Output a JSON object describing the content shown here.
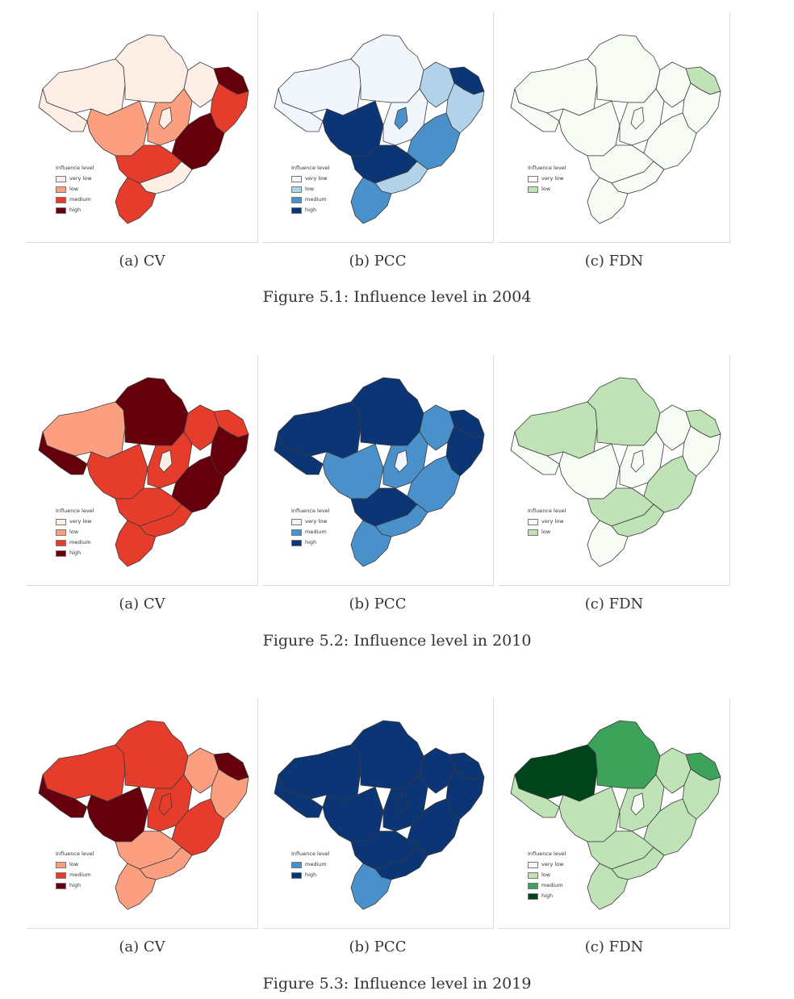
{
  "colors": {
    "red": {
      "very_low": "#fdeee6",
      "low": "#fb9f80",
      "medium": "#e63c2b",
      "high": "#66000d"
    },
    "blue": {
      "very_low": "#f1f6fd",
      "low": "#b2d2ea",
      "medium": "#4a91cb",
      "high": "#0b3574"
    },
    "green": {
      "very_low": "#f6fbf4",
      "low": "#bfe3b6",
      "medium": "#3da35a",
      "high": "#00441b"
    }
  },
  "figures": [
    {
      "caption": "Figure 5.1: Influence level in 2004",
      "panels": [
        {
          "caption": "(a) CV",
          "palette": "red",
          "legend": {
            "title": "Influence level",
            "items": [
              [
                "very low",
                "very_low"
              ],
              [
                "low",
                "low"
              ],
              [
                "medium",
                "medium"
              ],
              [
                "high",
                "high"
              ]
            ]
          }
        },
        {
          "caption": "(b) PCC",
          "palette": "blue",
          "legend": {
            "title": "Influence level",
            "items": [
              [
                "very low",
                "very_low"
              ],
              [
                "low",
                "low"
              ],
              [
                "medium",
                "medium"
              ],
              [
                "high",
                "high"
              ]
            ]
          }
        },
        {
          "caption": "(c) FDN",
          "palette": "green",
          "legend": {
            "title": "Influence level",
            "items": [
              [
                "very low",
                "very_low"
              ],
              [
                "low",
                "low"
              ]
            ]
          }
        }
      ]
    },
    {
      "caption": "Figure 5.2: Influence level in 2010",
      "panels": [
        {
          "caption": "(a) CV",
          "palette": "red",
          "legend": {
            "title": "Influence level",
            "items": [
              [
                "very low",
                "very_low"
              ],
              [
                "low",
                "low"
              ],
              [
                "medium",
                "medium"
              ],
              [
                "high",
                "high"
              ]
            ]
          }
        },
        {
          "caption": "(b) PCC",
          "palette": "blue",
          "legend": {
            "title": "Influence level",
            "items": [
              [
                "very low",
                "very_low"
              ],
              [
                "medium",
                "medium"
              ],
              [
                "high",
                "high"
              ]
            ]
          }
        },
        {
          "caption": "(c) FDN",
          "palette": "green",
          "legend": {
            "title": "Influence level",
            "items": [
              [
                "very low",
                "very_low"
              ],
              [
                "low",
                "low"
              ]
            ]
          }
        }
      ]
    },
    {
      "caption": "Figure 5.3: Influence level in 2019",
      "panels": [
        {
          "caption": "(a) CV",
          "palette": "red",
          "legend": {
            "title": "Influence level",
            "items": [
              [
                "low",
                "low"
              ],
              [
                "medium",
                "medium"
              ],
              [
                "high",
                "high"
              ]
            ]
          }
        },
        {
          "caption": "(b) PCC",
          "palette": "blue",
          "legend": {
            "title": "Influence level",
            "items": [
              [
                "medium",
                "medium"
              ],
              [
                "high",
                "high"
              ]
            ]
          }
        },
        {
          "caption": "(c) FDN",
          "palette": "green",
          "legend": {
            "title": "Influence level",
            "items": [
              [
                "very low",
                "very_low"
              ],
              [
                "low",
                "low"
              ],
              [
                "medium",
                "medium"
              ],
              [
                "high",
                "high"
              ]
            ]
          }
        }
      ]
    }
  ],
  "maps": [
    [
      {
        "north": "very_low",
        "amazonas": "very_low",
        "west": "very_low",
        "center_west": "low",
        "cerrado": "low",
        "northeast_inner": "very_low",
        "northeast_tip": "high",
        "east_coast": "medium",
        "southeast": "high",
        "south_central": "medium",
        "south_east2": "very_low",
        "south": "medium",
        "small_tocantins": "very_low"
      },
      {
        "north": "very_low",
        "amazonas": "very_low",
        "west": "very_low",
        "center_west": "high",
        "cerrado": "very_low",
        "northeast_inner": "low",
        "northeast_tip": "high",
        "east_coast": "low",
        "southeast": "medium",
        "south_central": "high",
        "south_east2": "low",
        "south": "medium",
        "small_tocantins": "medium"
      },
      {
        "north": "very_low",
        "amazonas": "very_low",
        "west": "very_low",
        "center_west": "very_low",
        "cerrado": "very_low",
        "northeast_inner": "very_low",
        "northeast_tip": "low",
        "east_coast": "very_low",
        "southeast": "very_low",
        "south_central": "very_low",
        "south_east2": "very_low",
        "south": "very_low",
        "small_tocantins": "very_low"
      }
    ],
    [
      {
        "north": "high",
        "amazonas": "low",
        "west": "high",
        "center_west": "medium",
        "cerrado": "medium",
        "northeast_inner": "medium",
        "northeast_tip": "medium",
        "east_coast": "high",
        "southeast": "high",
        "south_central": "medium",
        "south_east2": "medium",
        "south": "medium",
        "small_tocantins": "very_low"
      },
      {
        "north": "high",
        "amazonas": "high",
        "west": "high",
        "center_west": "medium",
        "cerrado": "medium",
        "northeast_inner": "medium",
        "northeast_tip": "high",
        "east_coast": "high",
        "southeast": "medium",
        "south_central": "high",
        "south_east2": "medium",
        "south": "medium",
        "small_tocantins": "very_low"
      },
      {
        "north": "low",
        "amazonas": "low",
        "west": "very_low",
        "center_west": "very_low",
        "cerrado": "very_low",
        "northeast_inner": "very_low",
        "northeast_tip": "low",
        "east_coast": "very_low",
        "southeast": "low",
        "south_central": "low",
        "south_east2": "low",
        "south": "very_low",
        "small_tocantins": "very_low"
      }
    ],
    [
      {
        "north": "medium",
        "amazonas": "medium",
        "west": "high",
        "center_west": "high",
        "cerrado": "medium",
        "northeast_inner": "low",
        "northeast_tip": "high",
        "east_coast": "low",
        "southeast": "medium",
        "south_central": "low",
        "south_east2": "low",
        "south": "low",
        "small_tocantins": "medium"
      },
      {
        "north": "high",
        "amazonas": "high",
        "west": "high",
        "center_west": "high",
        "cerrado": "high",
        "northeast_inner": "high",
        "northeast_tip": "high",
        "east_coast": "high",
        "southeast": "high",
        "south_central": "high",
        "south_east2": "high",
        "south": "medium",
        "small_tocantins": "high"
      },
      {
        "north": "medium",
        "amazonas": "high",
        "west": "low",
        "center_west": "low",
        "cerrado": "low",
        "northeast_inner": "low",
        "northeast_tip": "medium",
        "east_coast": "low",
        "southeast": "low",
        "south_central": "low",
        "south_east2": "low",
        "south": "low",
        "small_tocantins": "very_low"
      }
    ]
  ]
}
